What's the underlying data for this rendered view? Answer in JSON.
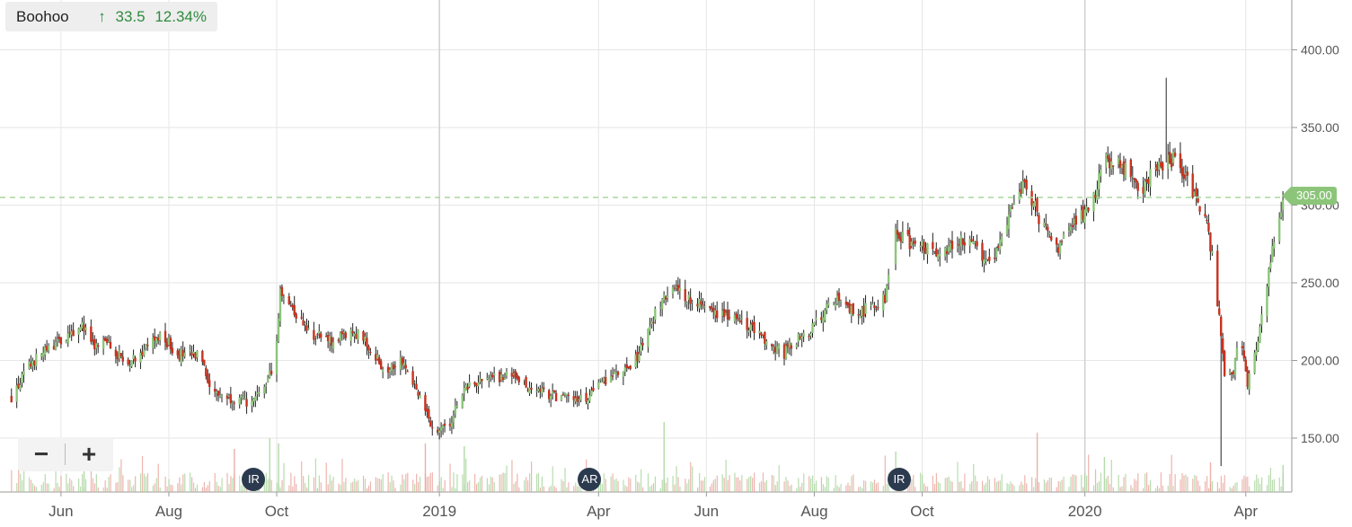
{
  "ticker": {
    "name": "Boohoo",
    "arrow": "↑",
    "change": "33.5",
    "change_pct": "12.34%"
  },
  "last_price_label": "305.00",
  "zoom": {
    "minus": "−",
    "plus": "+"
  },
  "markers": [
    {
      "label": "IR",
      "date": "2018-09-18"
    },
    {
      "label": "AR",
      "date": "2019-03-27"
    },
    {
      "label": "IR",
      "date": "2019-09-18"
    }
  ],
  "colors": {
    "up": "#8cc57a",
    "down": "#c8321e",
    "grid": "#e6e6e6",
    "last_price_line": "#a8d89a",
    "axis_text": "#555555"
  },
  "chart_data": {
    "type": "candlestick",
    "title": "",
    "xlabel": "",
    "ylabel": "",
    "x_range": [
      "2018-05-04",
      "2020-04-22"
    ],
    "ylim": [
      122,
      426
    ],
    "y_ticks": [
      150,
      200,
      250,
      300,
      350,
      400
    ],
    "y_tick_labels": [
      "150.00",
      "200.00",
      "250.00",
      "300.00",
      "350.00",
      "400.00"
    ],
    "x_ticks": [
      {
        "date": "2018-06-01",
        "label": "Jun"
      },
      {
        "date": "2018-08-01",
        "label": "Aug"
      },
      {
        "date": "2018-10-01",
        "label": "Oct"
      },
      {
        "date": "2019-01-01",
        "label": "2019"
      },
      {
        "date": "2019-04-01",
        "label": "Apr"
      },
      {
        "date": "2019-06-01",
        "label": "Jun"
      },
      {
        "date": "2019-08-01",
        "label": "Aug"
      },
      {
        "date": "2019-10-01",
        "label": "Oct"
      },
      {
        "date": "2020-01-01",
        "label": "2020"
      },
      {
        "date": "2020-04-01",
        "label": "Apr"
      }
    ],
    "last_price": 305.0,
    "price_path": [
      [
        "2018-05-04",
        176
      ],
      [
        "2018-05-15",
        198
      ],
      [
        "2018-05-28",
        210
      ],
      [
        "2018-06-08",
        216
      ],
      [
        "2018-06-12",
        225
      ],
      [
        "2018-06-20",
        207
      ],
      [
        "2018-06-28",
        212
      ],
      [
        "2018-07-08",
        197
      ],
      [
        "2018-07-20",
        210
      ],
      [
        "2018-07-28",
        215
      ],
      [
        "2018-08-07",
        204
      ],
      [
        "2018-08-20",
        202
      ],
      [
        "2018-08-25",
        180
      ],
      [
        "2018-09-05",
        176
      ],
      [
        "2018-09-18",
        172
      ],
      [
        "2018-09-27",
        190
      ],
      [
        "2018-10-01",
        210
      ],
      [
        "2018-10-03",
        246
      ],
      [
        "2018-10-12",
        230
      ],
      [
        "2018-10-20",
        218
      ],
      [
        "2018-11-01",
        212
      ],
      [
        "2018-11-15",
        218
      ],
      [
        "2018-11-25",
        205
      ],
      [
        "2018-12-01",
        193
      ],
      [
        "2018-12-10",
        202
      ],
      [
        "2018-12-20",
        180
      ],
      [
        "2018-12-27",
        158
      ],
      [
        "2019-01-05",
        155
      ],
      [
        "2019-01-15",
        182
      ],
      [
        "2019-01-25",
        188
      ],
      [
        "2019-02-10",
        190
      ],
      [
        "2019-02-25",
        181
      ],
      [
        "2019-03-10",
        176
      ],
      [
        "2019-03-25",
        175
      ],
      [
        "2019-04-05",
        188
      ],
      [
        "2019-04-20",
        195
      ],
      [
        "2019-05-01",
        225
      ],
      [
        "2019-05-10",
        245
      ],
      [
        "2019-05-25",
        240
      ],
      [
        "2019-06-05",
        232
      ],
      [
        "2019-06-20",
        228
      ],
      [
        "2019-07-05",
        212
      ],
      [
        "2019-07-15",
        205
      ],
      [
        "2019-08-01",
        222
      ],
      [
        "2019-08-12",
        240
      ],
      [
        "2019-08-25",
        230
      ],
      [
        "2019-09-10",
        240
      ],
      [
        "2019-09-16",
        283
      ],
      [
        "2019-09-25",
        275
      ],
      [
        "2019-10-10",
        270
      ],
      [
        "2019-10-22",
        278
      ],
      [
        "2019-11-01",
        272
      ],
      [
        "2019-11-10",
        262
      ],
      [
        "2019-11-18",
        290
      ],
      [
        "2019-11-28",
        315
      ],
      [
        "2019-12-05",
        295
      ],
      [
        "2019-12-15",
        270
      ],
      [
        "2019-12-25",
        288
      ],
      [
        "2020-01-05",
        300
      ],
      [
        "2020-01-12",
        330
      ],
      [
        "2020-01-22",
        325
      ],
      [
        "2020-02-01",
        310
      ],
      [
        "2020-02-12",
        325
      ],
      [
        "2020-02-20",
        330
      ],
      [
        "2020-02-28",
        315
      ],
      [
        "2020-03-05",
        300
      ],
      [
        "2020-03-10",
        290
      ],
      [
        "2020-03-15",
        250
      ],
      [
        "2020-03-20",
        190
      ],
      [
        "2020-03-25",
        195
      ],
      [
        "2020-03-29",
        215
      ],
      [
        "2020-04-02",
        185
      ],
      [
        "2020-04-08",
        210
      ],
      [
        "2020-04-15",
        265
      ],
      [
        "2020-04-20",
        290
      ],
      [
        "2020-04-22",
        305
      ]
    ],
    "spikes": [
      {
        "date": "2020-02-16",
        "high": 382
      },
      {
        "date": "2020-03-18",
        "low": 132
      }
    ],
    "volume_spikes": [
      {
        "date": "2018-06-14",
        "rel": 0.95,
        "dir": "up"
      },
      {
        "date": "2018-09-07",
        "rel": 0.8,
        "dir": "down"
      },
      {
        "date": "2018-09-27",
        "rel": 1.0,
        "dir": "up"
      },
      {
        "date": "2018-10-02",
        "rel": 0.9,
        "dir": "up"
      },
      {
        "date": "2018-12-24",
        "rel": 0.9,
        "dir": "down"
      },
      {
        "date": "2019-01-15",
        "rel": 0.85,
        "dir": "up"
      },
      {
        "date": "2019-05-08",
        "rel": 1.3,
        "dir": "up"
      },
      {
        "date": "2019-09-16",
        "rel": 0.75,
        "dir": "up"
      },
      {
        "date": "2019-12-05",
        "rel": 1.1,
        "dir": "down"
      },
      {
        "date": "2020-01-12",
        "rel": 0.65,
        "dir": "up"
      },
      {
        "date": "2020-03-12",
        "rel": 0.55,
        "dir": "down"
      },
      {
        "date": "2020-04-22",
        "rel": 0.5,
        "dir": "up"
      }
    ]
  }
}
